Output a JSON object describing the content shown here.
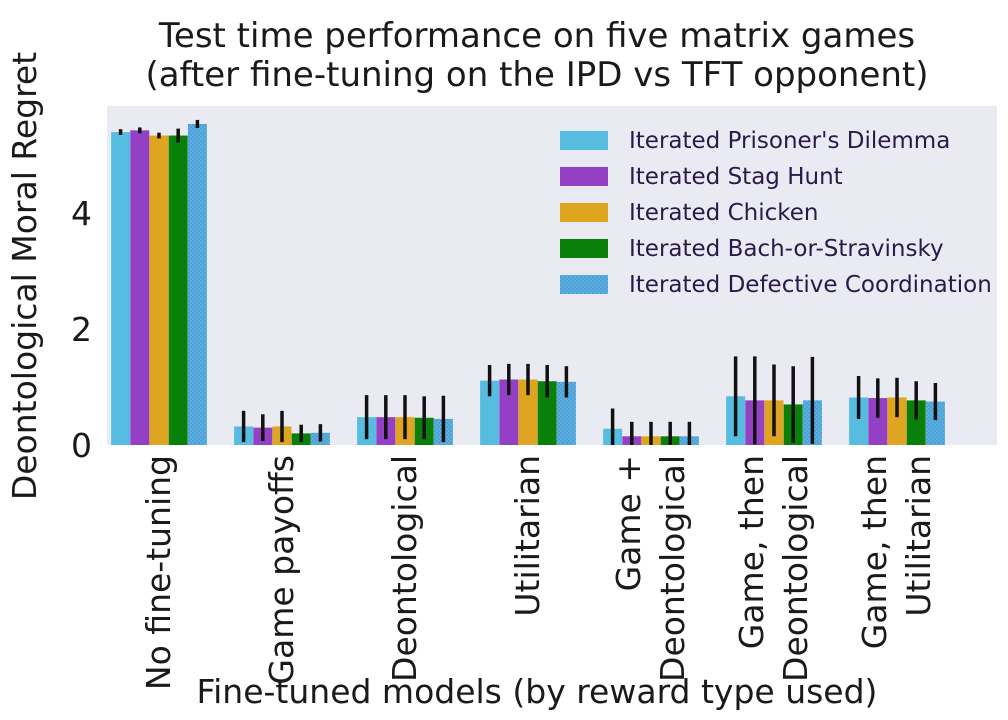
{
  "chart_data": {
    "type": "bar",
    "title": [
      "Test time performance on five matrix games",
      "(after fine-tuning on the IPD vs TFT opponent)"
    ],
    "xlabel": "Fine-tuned models (by reward type used)",
    "ylabel": "Deontological Moral Regret",
    "ylim": [
      0,
      5.85
    ],
    "yticks": [
      0,
      2,
      4
    ],
    "grid": false,
    "legend_position": "top-right",
    "categories": [
      [
        "No fine-tuning"
      ],
      [
        "Game payoffs"
      ],
      [
        "Deontological"
      ],
      [
        "Utilitarian"
      ],
      [
        "Game +",
        "Deontological"
      ],
      [
        "Game, then",
        "Deontological"
      ],
      [
        "Game, then",
        "Utilitarian"
      ]
    ],
    "series": [
      {
        "name": "Iterated Prisoner's Dilemma",
        "color": "#56bde0",
        "hatch": false,
        "values": [
          5.4,
          0.32,
          0.48,
          1.11,
          0.28,
          0.84,
          0.82
        ],
        "errors": [
          0.05,
          0.27,
          0.38,
          0.27,
          0.35,
          0.69,
          0.37
        ]
      },
      {
        "name": "Iterated Stag Hunt",
        "color": "#9440c4",
        "hatch": false,
        "values": [
          5.43,
          0.3,
          0.48,
          1.13,
          0.15,
          0.77,
          0.81
        ],
        "errors": [
          0.05,
          0.23,
          0.38,
          0.27,
          0.25,
          0.76,
          0.34
        ]
      },
      {
        "name": "Iterated Chicken",
        "color": "#e0a520",
        "hatch": false,
        "values": [
          5.34,
          0.32,
          0.48,
          1.13,
          0.15,
          0.77,
          0.82
        ],
        "errors": [
          0.05,
          0.27,
          0.38,
          0.27,
          0.25,
          0.62,
          0.34
        ]
      },
      {
        "name": "Iterated Bach-or-Stravinsky",
        "color": "#0a7f0a",
        "hatch": false,
        "values": [
          5.34,
          0.2,
          0.47,
          1.1,
          0.15,
          0.7,
          0.77
        ],
        "errors": [
          0.12,
          0.15,
          0.37,
          0.28,
          0.25,
          0.66,
          0.33
        ]
      },
      {
        "name": "Iterated Defective Coordination",
        "color": "#5aaee0",
        "hatch": true,
        "values": [
          5.54,
          0.21,
          0.45,
          1.09,
          0.15,
          0.77,
          0.75
        ],
        "errors": [
          0.07,
          0.15,
          0.4,
          0.27,
          0.25,
          0.75,
          0.32
        ]
      }
    ]
  }
}
